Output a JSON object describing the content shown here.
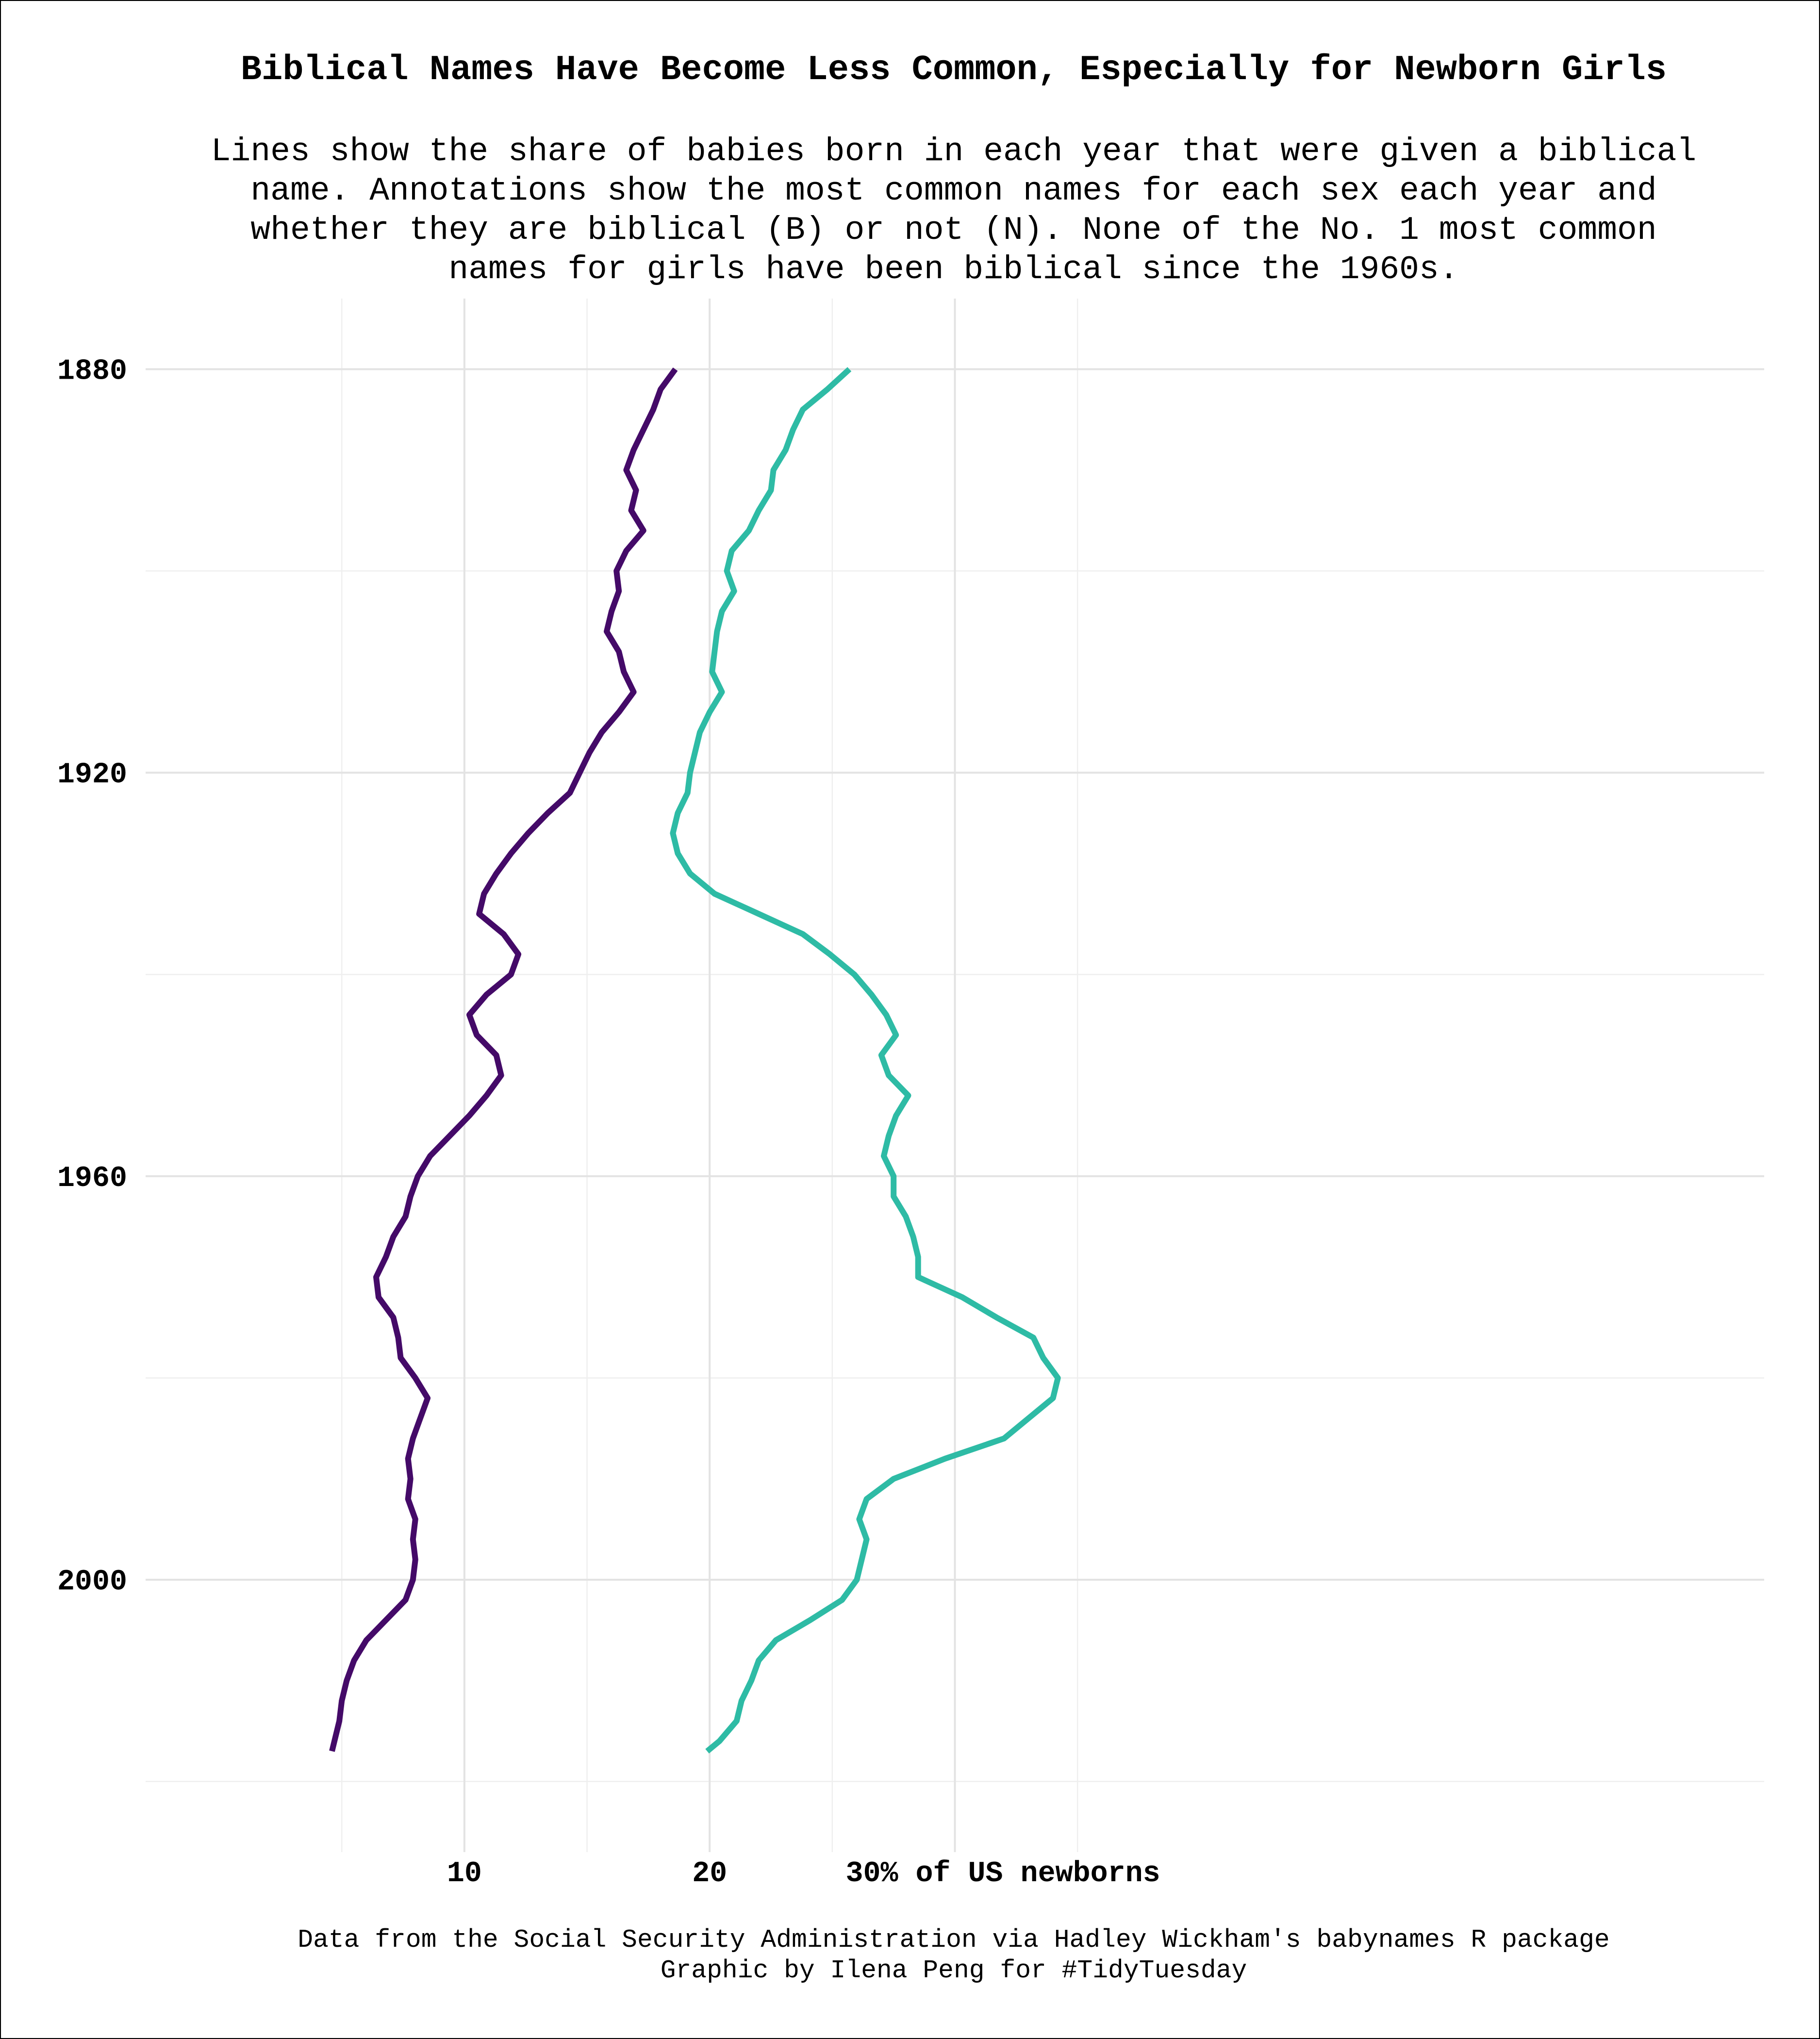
{
  "chart_data": {
    "type": "line",
    "title": "Biblical Names Have Become Less Common, Especially for Newborn Girls",
    "subtitle_lines": [
      "Lines show the share of babies born in each year that were given a biblical",
      "name. Annotations show the most common names for each sex each year and",
      "whether they are biblical (B) or not (N). None of the No. 1 most common",
      "names for girls have been biblical since the 1960s."
    ],
    "orientation": "vertical-time",
    "xlabel": "",
    "ylabel": "",
    "x_ticks": [
      {
        "value": 10,
        "label": "10"
      },
      {
        "value": 20,
        "label": "20"
      },
      {
        "value": 30,
        "label": "30% of US newborns"
      }
    ],
    "y_ticks": [
      {
        "value": 1880,
        "label": "1880"
      },
      {
        "value": 1920,
        "label": "1920"
      },
      {
        "value": 1960,
        "label": "1960"
      },
      {
        "value": 2000,
        "label": "2000"
      }
    ],
    "xlim": [
      -3,
      63
    ],
    "ylim": [
      1873,
      2027
    ],
    "grid": true,
    "series": [
      {
        "color": "#440a68",
        "points": [
          [
            1880,
            18.6
          ],
          [
            1882,
            18.0
          ],
          [
            1884,
            17.7
          ],
          [
            1886,
            17.3
          ],
          [
            1888,
            16.9
          ],
          [
            1890,
            16.6
          ],
          [
            1892,
            17.0
          ],
          [
            1894,
            16.8
          ],
          [
            1896,
            17.3
          ],
          [
            1898,
            16.6
          ],
          [
            1900,
            16.2
          ],
          [
            1902,
            16.3
          ],
          [
            1904,
            16.0
          ],
          [
            1906,
            15.8
          ],
          [
            1908,
            16.3
          ],
          [
            1910,
            16.5
          ],
          [
            1912,
            16.9
          ],
          [
            1914,
            16.3
          ],
          [
            1916,
            15.6
          ],
          [
            1918,
            15.1
          ],
          [
            1920,
            14.7
          ],
          [
            1922,
            14.3
          ],
          [
            1924,
            13.4
          ],
          [
            1926,
            12.6
          ],
          [
            1928,
            11.9
          ],
          [
            1930,
            11.3
          ],
          [
            1932,
            10.8
          ],
          [
            1934,
            10.6
          ],
          [
            1936,
            11.6
          ],
          [
            1938,
            12.2
          ],
          [
            1940,
            11.9
          ],
          [
            1942,
            10.9
          ],
          [
            1944,
            10.2
          ],
          [
            1946,
            10.5
          ],
          [
            1948,
            11.3
          ],
          [
            1950,
            11.5
          ],
          [
            1952,
            10.9
          ],
          [
            1954,
            10.2
          ],
          [
            1956,
            9.4
          ],
          [
            1958,
            8.6
          ],
          [
            1960,
            8.1
          ],
          [
            1962,
            7.8
          ],
          [
            1964,
            7.6
          ],
          [
            1966,
            7.1
          ],
          [
            1968,
            6.8
          ],
          [
            1970,
            6.4
          ],
          [
            1972,
            6.5
          ],
          [
            1974,
            7.1
          ],
          [
            1976,
            7.3
          ],
          [
            1978,
            7.4
          ],
          [
            1980,
            8.0
          ],
          [
            1982,
            8.5
          ],
          [
            1984,
            8.2
          ],
          [
            1986,
            7.9
          ],
          [
            1988,
            7.7
          ],
          [
            1990,
            7.8
          ],
          [
            1992,
            7.7
          ],
          [
            1994,
            8.0
          ],
          [
            1996,
            7.9
          ],
          [
            1998,
            8.0
          ],
          [
            2000,
            7.9
          ],
          [
            2002,
            7.6
          ],
          [
            2004,
            6.8
          ],
          [
            2006,
            6.0
          ],
          [
            2008,
            5.5
          ],
          [
            2010,
            5.2
          ],
          [
            2012,
            5.0
          ],
          [
            2014,
            4.9
          ],
          [
            2017,
            4.6
          ]
        ]
      },
      {
        "color": "#2ebba5",
        "points": [
          [
            1880,
            25.7
          ],
          [
            1882,
            24.8
          ],
          [
            1884,
            23.8
          ],
          [
            1886,
            23.4
          ],
          [
            1888,
            23.1
          ],
          [
            1890,
            22.6
          ],
          [
            1892,
            22.5
          ],
          [
            1894,
            22.0
          ],
          [
            1896,
            21.6
          ],
          [
            1898,
            20.9
          ],
          [
            1900,
            20.7
          ],
          [
            1902,
            21.0
          ],
          [
            1904,
            20.5
          ],
          [
            1906,
            20.3
          ],
          [
            1908,
            20.2
          ],
          [
            1910,
            20.1
          ],
          [
            1912,
            20.5
          ],
          [
            1914,
            20.0
          ],
          [
            1916,
            19.6
          ],
          [
            1918,
            19.4
          ],
          [
            1920,
            19.2
          ],
          [
            1922,
            19.1
          ],
          [
            1924,
            18.7
          ],
          [
            1926,
            18.5
          ],
          [
            1928,
            18.7
          ],
          [
            1930,
            19.2
          ],
          [
            1932,
            20.2
          ],
          [
            1934,
            22.0
          ],
          [
            1936,
            23.8
          ],
          [
            1938,
            24.9
          ],
          [
            1940,
            25.9
          ],
          [
            1942,
            26.6
          ],
          [
            1944,
            27.2
          ],
          [
            1946,
            27.6
          ],
          [
            1948,
            27.0
          ],
          [
            1950,
            27.3
          ],
          [
            1952,
            28.1
          ],
          [
            1954,
            27.6
          ],
          [
            1956,
            27.3
          ],
          [
            1958,
            27.1
          ],
          [
            1960,
            27.5
          ],
          [
            1962,
            27.5
          ],
          [
            1964,
            28.0
          ],
          [
            1966,
            28.3
          ],
          [
            1968,
            28.5
          ],
          [
            1970,
            28.5
          ],
          [
            1972,
            30.3
          ],
          [
            1974,
            31.7
          ],
          [
            1976,
            33.2
          ],
          [
            1978,
            33.6
          ],
          [
            1980,
            34.2
          ],
          [
            1982,
            34.0
          ],
          [
            1984,
            33.0
          ],
          [
            1986,
            32.0
          ],
          [
            1988,
            29.6
          ],
          [
            1990,
            27.5
          ],
          [
            1992,
            26.4
          ],
          [
            1994,
            26.1
          ],
          [
            1996,
            26.4
          ],
          [
            1998,
            26.2
          ],
          [
            2000,
            26.0
          ],
          [
            2002,
            25.4
          ],
          [
            2004,
            24.1
          ],
          [
            2006,
            22.7
          ],
          [
            2008,
            22.0
          ],
          [
            2010,
            21.7
          ],
          [
            2012,
            21.3
          ],
          [
            2014,
            21.1
          ],
          [
            2016,
            20.4
          ],
          [
            2017,
            19.9
          ]
        ]
      }
    ]
  },
  "caption_lines": [
    "Data from the Social Security Administration via Hadley Wickham's babynames R package",
    "Graphic by Ilena Peng for #TidyTuesday"
  ]
}
